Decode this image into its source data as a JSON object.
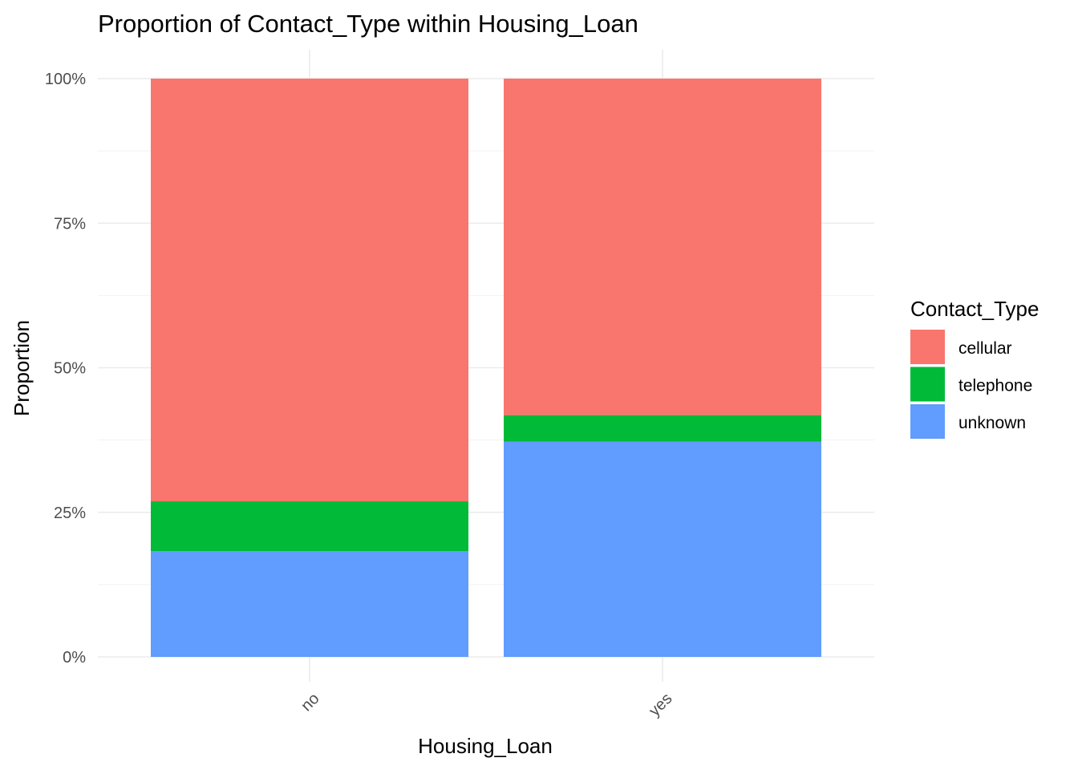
{
  "chart_data": {
    "type": "bar",
    "stacked": true,
    "title": "Proportion of Contact_Type within Housing_Loan",
    "xlabel": "Housing_Loan",
    "ylabel": "Proportion",
    "categories": [
      "no",
      "yes"
    ],
    "y_tick_labels": [
      "0%",
      "25%",
      "50%",
      "75%",
      "100%"
    ],
    "ylim": [
      0,
      1
    ],
    "grid": true,
    "legend": {
      "title": "Contact_Type",
      "position": "right"
    },
    "series": [
      {
        "name": "unknown",
        "color": "#619CFF",
        "values": [
          0.183,
          0.372
        ]
      },
      {
        "name": "telephone",
        "color": "#00BA38",
        "values": [
          0.086,
          0.046
        ]
      },
      {
        "name": "cellular",
        "color": "#F8766D",
        "values": [
          0.731,
          0.582
        ]
      }
    ],
    "legend_order": [
      "cellular",
      "telephone",
      "unknown"
    ]
  }
}
